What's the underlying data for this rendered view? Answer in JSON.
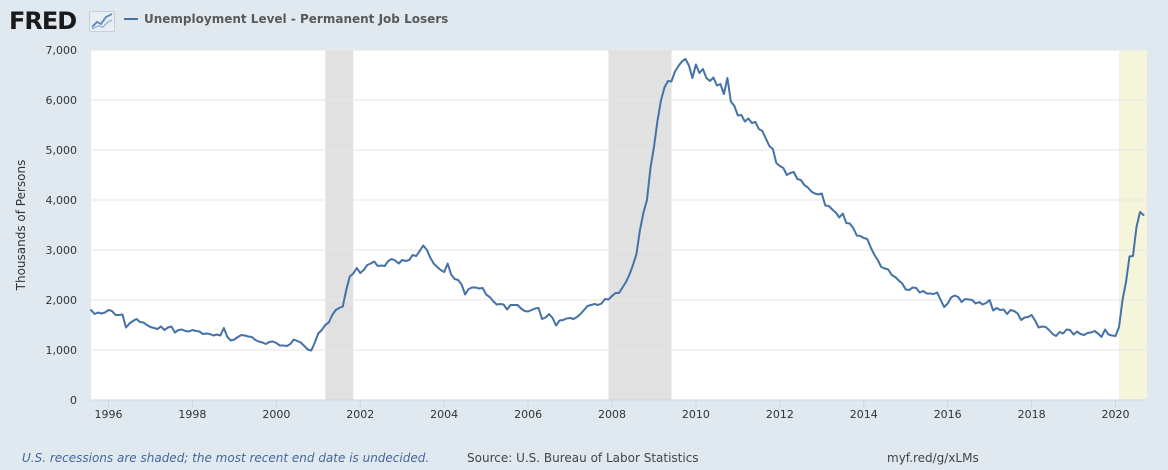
{
  "header": {
    "logo_text": "FRED",
    "legend_label": "Unemployment Level - Permanent Job Losers"
  },
  "colors": {
    "series": "#4572a7",
    "recession": "#e1e1e1",
    "undecided_recession": "#f5f5dc",
    "background": "#e1e9f0",
    "plot_background": "#ffffff",
    "grid": "#e6e6e6"
  },
  "chart_data": {
    "type": "line",
    "title": "",
    "xlabel": "",
    "ylabel": "Thousands of Persons",
    "ylim": [
      0,
      7000
    ],
    "xlim": [
      1995.583,
      2020.75
    ],
    "yticks": [
      0,
      1000,
      2000,
      3000,
      4000,
      5000,
      6000,
      7000
    ],
    "ytick_labels": [
      "0",
      "1,000",
      "2,000",
      "3,000",
      "4,000",
      "5,000",
      "6,000",
      "7,000"
    ],
    "xticks": [
      1996,
      1998,
      2000,
      2002,
      2004,
      2006,
      2008,
      2010,
      2012,
      2014,
      2016,
      2018,
      2020
    ],
    "xtick_labels": [
      "1996",
      "1998",
      "2000",
      "2002",
      "2004",
      "2006",
      "2008",
      "2010",
      "2012",
      "2014",
      "2016",
      "2018",
      "2020"
    ],
    "grid": true,
    "legend": "top-left",
    "recessions": [
      {
        "start": 2001.167,
        "end": 2001.833,
        "undecided": false
      },
      {
        "start": 2007.917,
        "end": 2009.417,
        "undecided": false
      },
      {
        "start": 2020.083,
        "end": 2020.75,
        "undecided": true
      }
    ],
    "series": [
      {
        "name": "Unemployment Level - Permanent Job Losers",
        "x_start": 1995.583,
        "x_step_months": 1,
        "values": [
          1800,
          1720,
          1750,
          1730,
          1750,
          1800,
          1780,
          1700,
          1700,
          1710,
          1450,
          1530,
          1580,
          1620,
          1560,
          1550,
          1500,
          1460,
          1440,
          1420,
          1470,
          1400,
          1450,
          1470,
          1350,
          1400,
          1410,
          1380,
          1370,
          1400,
          1380,
          1370,
          1320,
          1330,
          1320,
          1290,
          1310,
          1290,
          1440,
          1260,
          1190,
          1210,
          1260,
          1300,
          1290,
          1270,
          1260,
          1200,
          1170,
          1150,
          1120,
          1160,
          1170,
          1140,
          1090,
          1090,
          1080,
          1120,
          1210,
          1180,
          1150,
          1080,
          1010,
          990,
          1150,
          1330,
          1400,
          1500,
          1550,
          1700,
          1800,
          1840,
          1870,
          2200,
          2470,
          2530,
          2640,
          2540,
          2600,
          2700,
          2730,
          2770,
          2680,
          2690,
          2680,
          2780,
          2820,
          2790,
          2730,
          2800,
          2780,
          2800,
          2900,
          2880,
          2980,
          3090,
          3010,
          2850,
          2730,
          2660,
          2600,
          2560,
          2730,
          2510,
          2420,
          2400,
          2310,
          2110,
          2220,
          2250,
          2250,
          2230,
          2240,
          2110,
          2060,
          1980,
          1910,
          1920,
          1910,
          1810,
          1900,
          1900,
          1900,
          1830,
          1780,
          1770,
          1800,
          1830,
          1840,
          1620,
          1650,
          1720,
          1640,
          1490,
          1590,
          1600,
          1630,
          1640,
          1620,
          1660,
          1720,
          1800,
          1880,
          1900,
          1920,
          1900,
          1930,
          2020,
          2010,
          2080,
          2140,
          2140,
          2250,
          2360,
          2510,
          2700,
          2920,
          3400,
          3750,
          4000,
          4640,
          5060,
          5580,
          5990,
          6250,
          6380,
          6370,
          6570,
          6680,
          6770,
          6820,
          6690,
          6440,
          6710,
          6540,
          6620,
          6440,
          6380,
          6450,
          6290,
          6320,
          6120,
          6440,
          5970,
          5880,
          5690,
          5700,
          5570,
          5630,
          5540,
          5560,
          5420,
          5380,
          5230,
          5080,
          5020,
          4740,
          4680,
          4640,
          4500,
          4540,
          4560,
          4420,
          4400,
          4300,
          4250,
          4170,
          4130,
          4110,
          4130,
          3890,
          3880,
          3810,
          3750,
          3650,
          3730,
          3540,
          3530,
          3440,
          3290,
          3280,
          3240,
          3220,
          3050,
          2910,
          2800,
          2660,
          2630,
          2610,
          2500,
          2460,
          2390,
          2330,
          2210,
          2200,
          2250,
          2240,
          2150,
          2180,
          2130,
          2130,
          2120,
          2150,
          2000,
          1860,
          1930,
          2050,
          2090,
          2060,
          1960,
          2020,
          2010,
          2000,
          1930,
          1960,
          1910,
          1940,
          2000,
          1790,
          1840,
          1800,
          1810,
          1720,
          1800,
          1780,
          1730,
          1600,
          1650,
          1660,
          1700,
          1590,
          1450,
          1470,
          1460,
          1400,
          1320,
          1280,
          1360,
          1330,
          1410,
          1400,
          1310,
          1370,
          1320,
          1300,
          1340,
          1350,
          1380,
          1330,
          1260,
          1410,
          1310,
          1290,
          1280,
          1460,
          2000,
          2360,
          2870,
          2880,
          3460,
          3760,
          3700
        ]
      }
    ]
  },
  "footer": {
    "note": "U.S. recessions are shaded; the most recent end date is undecided.",
    "source": "Source: U.S. Bureau of Labor Statistics",
    "link": "myf.red/g/xLMs"
  }
}
